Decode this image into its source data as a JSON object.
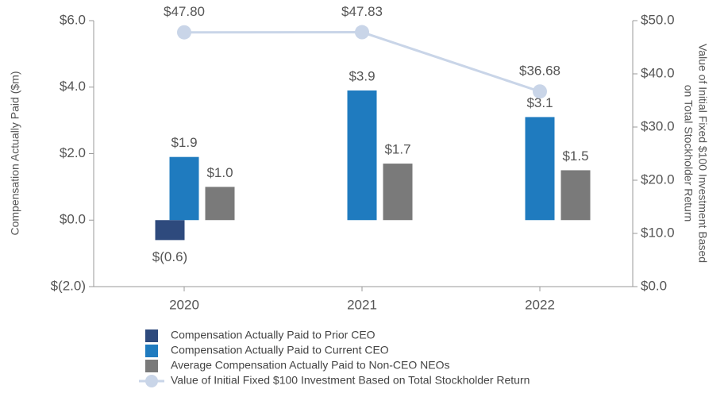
{
  "chart_data": {
    "type": "bar",
    "y_label": "Compensation Actually Paid ($m)",
    "y2_label": [
      "Value of Initial Fixed $100 Investment Based",
      "on Total Stockholder Return"
    ],
    "categories": [
      "2020",
      "2021",
      "2022"
    ],
    "ylim": [
      -2,
      6
    ],
    "yticks": [
      {
        "value": -2,
        "label": "$(2.0)"
      },
      {
        "value": 0,
        "label": "$0.0"
      },
      {
        "value": 2,
        "label": "$2.0"
      },
      {
        "value": 4,
        "label": "$4.0"
      },
      {
        "value": 6,
        "label": "$6.0"
      }
    ],
    "y2lim": [
      0,
      50
    ],
    "y2ticks": [
      {
        "value": 0,
        "label": "$0.0"
      },
      {
        "value": 10,
        "label": "$10.0"
      },
      {
        "value": 20,
        "label": "$20.0"
      },
      {
        "value": 30,
        "label": "$30.0"
      },
      {
        "value": 40,
        "label": "$40.0"
      },
      {
        "value": 50,
        "label": "$50.0"
      }
    ],
    "series": [
      {
        "name": "Compensation Actually Paid to Prior CEO",
        "type": "bar",
        "color": "#2e4a7d",
        "values": [
          -0.6,
          null,
          null
        ],
        "value_labels": [
          "$(0.6)",
          null,
          null
        ]
      },
      {
        "name": "Compensation Actually Paid to Current CEO",
        "type": "bar",
        "color": "#1f7bbf",
        "values": [
          1.9,
          3.9,
          3.1
        ],
        "value_labels": [
          "$1.9",
          "$3.9",
          "$3.1"
        ]
      },
      {
        "name": "Average Compensation Actually Paid to Non-CEO NEOs",
        "type": "bar",
        "color": "#7a7a7a",
        "values": [
          1.0,
          1.7,
          1.5
        ],
        "value_labels": [
          "$1.0",
          "$1.7",
          "$1.5"
        ]
      },
      {
        "name": "Value of Initial Fixed $100 Investment Based on Total Stockholder Return",
        "type": "line",
        "axis": "y2",
        "color": "#c9d5e8",
        "values": [
          47.8,
          47.83,
          36.68
        ],
        "value_labels": [
          "$47.80",
          "$47.83",
          "$36.68"
        ]
      }
    ]
  }
}
